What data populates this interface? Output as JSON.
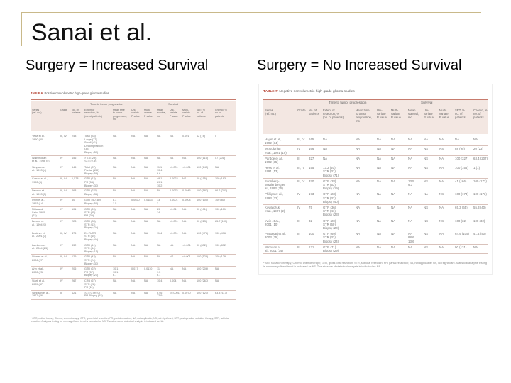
{
  "slide": {
    "title": "Sanai et al.",
    "left_heading": "Surgery = Increased Survival",
    "right_heading": "Surgery = No Increased Survival"
  },
  "table6": {
    "caption_label": "TABLE 6.",
    "caption_text": "Positive nonvolumetric high-grade glioma studies",
    "group_left": "Time to tumor progression",
    "group_right": "Survival",
    "headers": [
      "Series\n(ref. no.)",
      "Grade",
      "No. of\npatients",
      "Extent of\nresection, %\n(no. of patients)",
      "Mean time\nto tumor\nprogression,\nmo",
      "Uni-\nvariate\nP value",
      "Multi-\nvariate\nP value",
      "Mean\nsurvival,\nmo",
      "Uni-\nvariate\nP value",
      "Multi-\nvariate\nP value",
      "SRT, %\nno. of\npatients",
      "Chemo, %\nno. of\npatients"
    ],
    "rows": [
      [
        "Yeda et al.,\n1990 (30)",
        "III, IV",
        "243",
        "Total (33)\nLarge (77)\nSmall (41)\nDecompression\n(33)\nBiopsy (57)",
        "NA",
        "NA",
        "NA",
        "NA",
        "NA",
        "0.001",
        "12 (78)",
        "0"
      ],
      [
        "Wallsmollan\net al., 1998 (4)",
        "IV",
        "156",
        "> 2.5 (29)\n<2.5 (2.5)",
        "NA",
        "NA",
        "NA",
        "NA",
        "NA",
        "NA",
        "100 (115)",
        "57 (201)"
      ],
      [
        "Simpson et\nal., 1993 (4)",
        "IV",
        "645",
        "Total (87)\nPartial (159)\nBiopsy (59)",
        "NA",
        "NA",
        "NA",
        "11.1\n10.4\n6.6",
        "<0.001",
        "<0.001",
        "100 (645)",
        "NA"
      ],
      [
        "Curran et al.,\n1992 (5)",
        "III, IV",
        "1,578",
        "GTR (13)\nPR (54)\nBiopsy (33)",
        "NA",
        "NA",
        "NA",
        "49.1\n89.1\n10.2",
        "0.0023",
        "NS",
        "00 (155)",
        "100 (193)"
      ],
      [
        "Devaux et\nal., 1993 (5)",
        "III, IV",
        "263",
        "GTR (279)\nBiopsy (36)",
        "NA",
        "NA",
        "NA",
        "NA",
        "0.0075",
        "0.0046",
        "100 (183)",
        "86.2 (201)"
      ],
      [
        "Irwin et al.,\n1993 (14)",
        "IV",
        "60",
        "GTR >50 (82)\nBiopsy (50)",
        "8.3\n1.5",
        "0.0020",
        "0.0183",
        "13\n3",
        "0.0001",
        "0.0004",
        "100 (100)",
        "100 (80)"
      ],
      [
        "Nitta and\nSato, 1995\n(22)",
        "IV",
        "101",
        "GTR (26)\nSTR (35)\nPR (39)",
        "NA",
        "NA",
        "NA",
        "29\n14",
        "<0.01",
        "NA",
        "00 (101)",
        "100 (101)"
      ],
      [
        "Barone et\nal., 1994 (1)",
        "IV",
        "223",
        "GTR (33)\nSTR (41)\nBiopsy (24)",
        "NA",
        "NA",
        "NA",
        "NA",
        "<0.001",
        "NA",
        "00 (223)",
        "85.7 (101)"
      ],
      [
        "Buckner et\nal., 2001 (3)",
        "III, IV",
        "476",
        "Ex-TURR\nSTR (44)\nBiopsy (44)",
        "NA",
        "NA",
        "NA",
        "11.4",
        "<0.001",
        "NA",
        "100 (476)",
        "100 (476)"
      ],
      [
        "Lamborn et\nal., 2004 (23)",
        "IV",
        "832",
        "GTR (41)\nSTR (44)\nBiopsy (15)",
        "NA",
        "NA",
        "NA",
        "NA",
        "NA",
        "<0.001",
        "00 (832)",
        "100 (832)"
      ],
      [
        "Stumer et al.,\n2006 (27)",
        "III, IV",
        "129",
        "GTR (43)\nSTR (24)\nBiopsy (33)",
        "NA",
        "NA",
        "NA",
        "NA",
        "NS",
        "<0.001",
        "100 (129)",
        "100 (129)"
      ],
      [
        "Ahn et al.,\n2002 (25)",
        "IV",
        "206",
        "GTR (22)\nPR (57)\nBiopsy (21)",
        "10.1\n10.1\n6.7",
        "0.017",
        "0.0110",
        "11\n9.5\n6.1",
        "NA",
        "NA",
        "100 (206)",
        "NA"
      ],
      [
        "Stark et al.,\n2005 (47)",
        "IV",
        "267",
        "CRB (67)\nSTR (22)\nPR (11)",
        "NA",
        "NA",
        "NA",
        "10.4",
        "0.004",
        "NA",
        "100 (267)",
        "NA"
      ],
      [
        "Simpson et al.,\n1977 (26)",
        "III",
        "121",
        ">2.5 GTR (7)\nPR-Biopsy (93)",
        "NA",
        "NA",
        "NA",
        "67.6\n72.9",
        "<0.0001",
        "0.0070",
        "100 (121)",
        "63.3 (117)"
      ]
    ],
    "footnote": "* GTR, radical biopsy; Chemo, chemotherapy; GTR, gross total resection; PR, partial resection; NA, not applicable; NS, not significant; SRT, postoperative radiation therapy; STR, subtotal resection. Analyses testing for nonmagnificent trend is indicated as NS. The absence of statistical analysis is indicated as NA."
  },
  "table7": {
    "caption_label": "TABLE 7.",
    "caption_text": "Negative nonvolumetric high-grade glioma studies",
    "group_left": "Time to tumor progression",
    "group_right": "Survival",
    "headers": [
      "Series\n(ref. no.)",
      "Grade",
      "No. of\npatients",
      "Extent of\nresection, %\n(no. of patients)",
      "Mean time\nto tumor\nprogression,\nmo",
      "Uni-\nvariate\nP value",
      "Multi-\nvariate\nP value",
      "Mean\nsurvival,\nmo",
      "Uni-\nvariate\nP value",
      "Multi-\nvariate\nP value",
      "SRT, %\nno. of\npatients",
      "Chemo, %\nno. of\npatients"
    ],
    "rows": [
      [
        "Hajan et al.,\n1992 (34)",
        "III, IV",
        "165",
        "NA",
        "NA",
        "NA",
        "NA",
        "NA",
        "NA",
        "NA",
        "NA",
        "NA"
      ],
      [
        "McGoldrigg\net al., 1991 (19)",
        "IV",
        "166",
        "NA",
        "NA",
        "NA",
        "NA",
        "NA",
        "NS",
        "NS",
        "88 (95)",
        "20 (23)"
      ],
      [
        "Pardoe et al.,\n1992 (35)",
        "III",
        "327",
        "NA",
        "NA",
        "NA",
        "NA",
        "NA",
        "NS",
        "NA",
        "100 (327)",
        "63.4 (207)"
      ],
      [
        "Hess et al.,\n1991 (13)",
        "III, IV",
        "155",
        "13.2 (20)\nSTR (31)\nBiopsy (71)",
        "NA",
        "NA",
        "NA",
        "NA",
        "NS",
        "NA",
        "100 (155)",
        "1 (1)"
      ],
      [
        "Sonnberg-\nWaalenberg et\nal., 1993 (35)",
        "III, IV",
        "370",
        "GTR (28)\nSTR (53)\nBiopsy (19)",
        "NA",
        "NA",
        "NA",
        "13.5\n9.3",
        "NS",
        "NA",
        "41 (166)",
        "100 (173)"
      ],
      [
        "Phillips et al.,\n1993 (32)",
        "IV",
        "173",
        "GTR (23)\nSTR (37)\nBiopsy (40)",
        "NA",
        "NA",
        "NA",
        "NA",
        "NA",
        "NS",
        "100 (173)",
        "100 (173)"
      ],
      [
        "Kowalczuk\net al., 1997 (2)",
        "IV",
        "75",
        "GTR (36)\nSTR (41)\nBiopsy (23)",
        "NA",
        "NA",
        "NA",
        "NA",
        "NS",
        "NA",
        "65.3 (65)",
        "55.3 (40)"
      ],
      [
        "Irwin et al.,\n2001 (10)",
        "III",
        "32",
        "GTR (20)\nSTR (60)\nBiopsy (20)",
        "NA",
        "NA",
        "NA",
        "NA",
        "NS",
        "NS",
        "100 (32)",
        "100 (32)"
      ],
      [
        "Prakasati et al.,\n2003 (35)",
        "III",
        "100",
        "GTR (69)\nSTR (33)\nBiopsy (24)",
        "NA",
        "NA",
        "NA",
        "NA\n88.6\n13.6",
        "NS",
        "NA",
        "64.9 (105)",
        "41.4 (40)"
      ],
      [
        "Winnans et\nal., 2001 (34)",
        "III",
        "131",
        "GTR (71)\nBiopsy (29)",
        "NA",
        "NA",
        "NA",
        "NA",
        "NS",
        "NA",
        "90 (131)",
        "NA"
      ]
    ],
    "footnote": "* SRT radiation therapy; Chemo, chemotherapy; GTR, gross total resection; STR, subtotal resection; PR, partial resection; NA, not applicable; NS, not significant. Statistical analysis testing is a nonmagnificent trend is indicated as NS. The absence of statistical analysis is indicated as NA."
  }
}
